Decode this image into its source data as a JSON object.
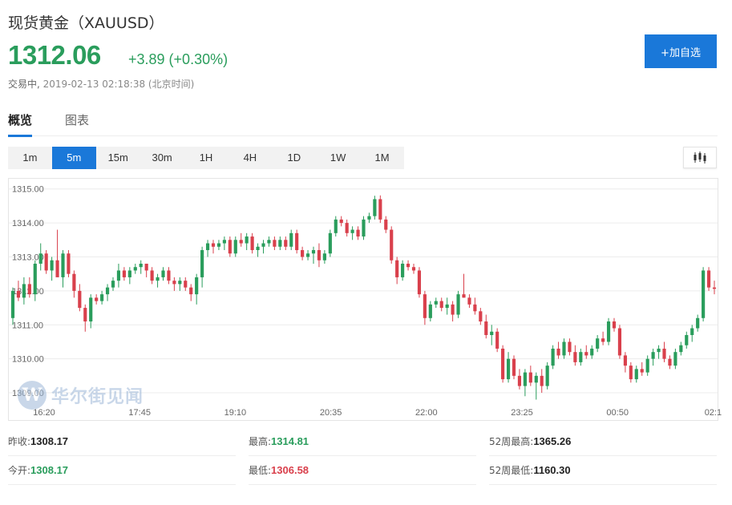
{
  "header": {
    "title": "现货黄金（XAUUSD）",
    "price": "1312.06",
    "change": "+3.89 (+0.30%)",
    "status": "交易中,",
    "timestamp": "2019-02-13 02:18:38 (北京时间)",
    "add_button": "+加自选"
  },
  "tabs": [
    {
      "label": "概览"
    },
    {
      "label": "图表"
    }
  ],
  "intervals": [
    "1m",
    "5m",
    "15m",
    "30m",
    "1H",
    "4H",
    "1D",
    "1W",
    "1M"
  ],
  "selected_interval": "5m",
  "watermark": {
    "text": "华尔街见闻",
    "logo": "W"
  },
  "colors": {
    "up": "#2a9d5c",
    "down": "#d9404c",
    "accent": "#1a78d9"
  },
  "chart_data": {
    "type": "candlestick",
    "y_ticks": [
      "1315.00",
      "1314.00",
      "1313.00",
      "1312.00",
      "1311.00",
      "1310.00",
      "1309.00"
    ],
    "ylim": [
      1308.6,
      1315.3
    ],
    "x_ticks": [
      "16:20",
      "17:45",
      "19:10",
      "20:35",
      "22:00",
      "23:25",
      "00:50",
      "02:1"
    ],
    "grid": true,
    "candles_ohlc": [
      [
        1311.2,
        1312.1,
        1311.0,
        1312.0
      ],
      [
        1312.0,
        1312.3,
        1311.7,
        1311.8
      ],
      [
        1311.8,
        1312.4,
        1311.6,
        1312.2
      ],
      [
        1312.2,
        1312.4,
        1311.8,
        1311.9
      ],
      [
        1311.9,
        1312.9,
        1311.7,
        1312.8
      ],
      [
        1312.8,
        1313.4,
        1312.6,
        1313.1
      ],
      [
        1313.1,
        1313.2,
        1312.5,
        1312.6
      ],
      [
        1312.6,
        1313.0,
        1312.3,
        1312.9
      ],
      [
        1312.9,
        1313.8,
        1312.6,
        1312.4
      ],
      [
        1312.4,
        1313.2,
        1312.1,
        1313.1
      ],
      [
        1313.1,
        1313.2,
        1312.4,
        1312.5
      ],
      [
        1312.5,
        1312.6,
        1311.8,
        1312.0
      ],
      [
        1312.0,
        1312.2,
        1311.4,
        1311.5
      ],
      [
        1311.5,
        1311.6,
        1310.8,
        1311.1
      ],
      [
        1311.1,
        1311.9,
        1310.9,
        1311.8
      ],
      [
        1311.8,
        1311.9,
        1311.6,
        1311.7
      ],
      [
        1311.7,
        1312.0,
        1311.6,
        1311.9
      ],
      [
        1311.9,
        1312.2,
        1311.7,
        1312.1
      ],
      [
        1312.1,
        1312.4,
        1312.0,
        1312.3
      ],
      [
        1312.3,
        1312.8,
        1312.1,
        1312.6
      ],
      [
        1312.6,
        1312.7,
        1312.3,
        1312.4
      ],
      [
        1312.4,
        1312.7,
        1312.2,
        1312.6
      ],
      [
        1312.6,
        1312.8,
        1312.5,
        1312.7
      ],
      [
        1312.7,
        1312.9,
        1312.5,
        1312.8
      ],
      [
        1312.8,
        1312.8,
        1312.4,
        1312.6
      ],
      [
        1312.6,
        1312.7,
        1312.2,
        1312.3
      ],
      [
        1312.3,
        1312.5,
        1312.1,
        1312.4
      ],
      [
        1312.4,
        1312.7,
        1312.3,
        1312.6
      ],
      [
        1312.6,
        1312.7,
        1312.2,
        1312.3
      ],
      [
        1312.3,
        1312.4,
        1312.0,
        1312.2
      ],
      [
        1312.2,
        1312.4,
        1312.0,
        1312.3
      ],
      [
        1312.3,
        1312.4,
        1312.0,
        1312.1
      ],
      [
        1312.1,
        1312.2,
        1311.7,
        1311.9
      ],
      [
        1311.9,
        1312.5,
        1311.6,
        1312.4
      ],
      [
        1312.4,
        1313.3,
        1312.1,
        1313.2
      ],
      [
        1313.2,
        1313.5,
        1313.0,
        1313.4
      ],
      [
        1313.4,
        1313.5,
        1313.1,
        1313.3
      ],
      [
        1313.3,
        1313.5,
        1313.2,
        1313.4
      ],
      [
        1313.4,
        1313.6,
        1313.2,
        1313.5
      ],
      [
        1313.5,
        1313.6,
        1313.0,
        1313.1
      ],
      [
        1313.1,
        1313.6,
        1313.0,
        1313.5
      ],
      [
        1313.5,
        1313.7,
        1313.3,
        1313.4
      ],
      [
        1313.4,
        1313.7,
        1313.2,
        1313.6
      ],
      [
        1313.6,
        1313.7,
        1313.1,
        1313.2
      ],
      [
        1313.2,
        1313.4,
        1313.0,
        1313.3
      ],
      [
        1313.3,
        1313.5,
        1313.1,
        1313.4
      ],
      [
        1313.4,
        1313.6,
        1313.3,
        1313.5
      ],
      [
        1313.5,
        1313.6,
        1313.2,
        1313.3
      ],
      [
        1313.3,
        1313.6,
        1313.2,
        1313.5
      ],
      [
        1313.5,
        1313.6,
        1313.2,
        1313.3
      ],
      [
        1313.3,
        1313.8,
        1313.2,
        1313.7
      ],
      [
        1313.7,
        1313.8,
        1313.1,
        1313.2
      ],
      [
        1313.2,
        1313.3,
        1312.9,
        1313.0
      ],
      [
        1313.0,
        1313.2,
        1312.9,
        1313.1
      ],
      [
        1313.1,
        1313.3,
        1312.8,
        1313.2
      ],
      [
        1313.2,
        1313.4,
        1312.7,
        1312.9
      ],
      [
        1312.9,
        1313.2,
        1312.8,
        1313.1
      ],
      [
        1313.1,
        1313.8,
        1313.0,
        1313.7
      ],
      [
        1313.7,
        1314.2,
        1313.6,
        1314.1
      ],
      [
        1314.1,
        1314.2,
        1313.9,
        1314.0
      ],
      [
        1314.0,
        1314.1,
        1313.6,
        1313.7
      ],
      [
        1313.7,
        1313.9,
        1313.5,
        1313.8
      ],
      [
        1313.8,
        1313.9,
        1313.5,
        1313.6
      ],
      [
        1313.6,
        1314.2,
        1313.5,
        1314.1
      ],
      [
        1314.1,
        1314.3,
        1314.0,
        1314.2
      ],
      [
        1314.2,
        1314.8,
        1314.1,
        1314.7
      ],
      [
        1314.7,
        1314.81,
        1314.0,
        1314.1
      ],
      [
        1314.1,
        1314.2,
        1313.7,
        1313.8
      ],
      [
        1313.8,
        1313.9,
        1312.8,
        1312.9
      ],
      [
        1312.9,
        1313.0,
        1312.2,
        1312.4
      ],
      [
        1312.4,
        1312.9,
        1312.3,
        1312.8
      ],
      [
        1312.8,
        1312.9,
        1312.6,
        1312.7
      ],
      [
        1312.7,
        1312.8,
        1312.5,
        1312.6
      ],
      [
        1312.6,
        1312.7,
        1311.8,
        1311.9
      ],
      [
        1311.9,
        1312.0,
        1311.0,
        1311.2
      ],
      [
        1311.2,
        1311.7,
        1311.1,
        1311.6
      ],
      [
        1311.6,
        1311.8,
        1311.5,
        1311.7
      ],
      [
        1311.7,
        1311.8,
        1311.4,
        1311.5
      ],
      [
        1311.5,
        1311.8,
        1311.3,
        1311.6
      ],
      [
        1311.6,
        1311.7,
        1311.1,
        1311.3
      ],
      [
        1311.3,
        1312.0,
        1311.2,
        1311.9
      ],
      [
        1311.9,
        1312.5,
        1311.8,
        1311.8
      ],
      [
        1311.8,
        1311.9,
        1311.5,
        1311.6
      ],
      [
        1311.6,
        1311.8,
        1311.3,
        1311.4
      ],
      [
        1311.4,
        1311.5,
        1311.0,
        1311.1
      ],
      [
        1311.1,
        1311.3,
        1310.6,
        1310.7
      ],
      [
        1310.7,
        1311.0,
        1310.4,
        1310.8
      ],
      [
        1310.8,
        1310.9,
        1310.2,
        1310.3
      ],
      [
        1310.3,
        1310.4,
        1309.3,
        1309.4
      ],
      [
        1309.4,
        1310.2,
        1309.3,
        1310.0
      ],
      [
        1310.0,
        1310.1,
        1309.4,
        1309.5
      ],
      [
        1309.5,
        1309.7,
        1309.1,
        1309.2
      ],
      [
        1309.2,
        1309.7,
        1308.9,
        1309.6
      ],
      [
        1309.6,
        1309.8,
        1309.2,
        1309.3
      ],
      [
        1309.3,
        1309.6,
        1308.8,
        1309.5
      ],
      [
        1309.5,
        1309.7,
        1309.0,
        1309.2
      ],
      [
        1309.2,
        1309.9,
        1309.1,
        1309.8
      ],
      [
        1309.8,
        1310.4,
        1309.7,
        1310.3
      ],
      [
        1310.3,
        1310.5,
        1310.0,
        1310.1
      ],
      [
        1310.1,
        1310.6,
        1310.0,
        1310.5
      ],
      [
        1310.5,
        1310.6,
        1310.1,
        1310.2
      ],
      [
        1310.2,
        1310.4,
        1309.8,
        1309.9
      ],
      [
        1309.9,
        1310.3,
        1309.8,
        1310.2
      ],
      [
        1310.2,
        1310.4,
        1310.0,
        1310.1
      ],
      [
        1310.1,
        1310.4,
        1310.0,
        1310.3
      ],
      [
        1310.3,
        1310.7,
        1310.2,
        1310.6
      ],
      [
        1310.6,
        1310.8,
        1310.4,
        1310.5
      ],
      [
        1310.5,
        1311.2,
        1310.4,
        1311.1
      ],
      [
        1311.1,
        1311.2,
        1310.8,
        1310.9
      ],
      [
        1310.9,
        1311.0,
        1310.0,
        1310.1
      ],
      [
        1310.1,
        1310.2,
        1309.6,
        1309.8
      ],
      [
        1309.8,
        1309.9,
        1309.3,
        1309.4
      ],
      [
        1309.4,
        1309.8,
        1309.3,
        1309.7
      ],
      [
        1309.7,
        1309.9,
        1309.5,
        1309.6
      ],
      [
        1309.6,
        1310.1,
        1309.5,
        1310.0
      ],
      [
        1310.0,
        1310.3,
        1309.8,
        1310.2
      ],
      [
        1310.2,
        1310.4,
        1310.0,
        1310.3
      ],
      [
        1310.3,
        1310.5,
        1309.9,
        1310.0
      ],
      [
        1310.0,
        1310.1,
        1309.7,
        1309.8
      ],
      [
        1309.8,
        1310.3,
        1309.7,
        1310.2
      ],
      [
        1310.2,
        1310.5,
        1310.1,
        1310.4
      ],
      [
        1310.4,
        1310.8,
        1310.3,
        1310.7
      ],
      [
        1310.7,
        1311.0,
        1310.5,
        1310.9
      ],
      [
        1310.9,
        1311.3,
        1310.8,
        1311.2
      ],
      [
        1311.2,
        1312.7,
        1311.1,
        1312.6
      ],
      [
        1312.6,
        1312.7,
        1312.0,
        1312.1
      ],
      [
        1312.1,
        1312.3,
        1311.9,
        1312.06
      ]
    ]
  },
  "stats": [
    {
      "label": "昨收:",
      "value": "1308.17",
      "color": ""
    },
    {
      "label": "最高:",
      "value": "1314.81",
      "color": "green"
    },
    {
      "label": "52周最高:",
      "value": "1365.26",
      "color": ""
    },
    {
      "label": "今开:",
      "value": "1308.17",
      "color": "green"
    },
    {
      "label": "最低:",
      "value": "1306.58",
      "color": "red"
    },
    {
      "label": "52周最低:",
      "value": "1160.30",
      "color": ""
    }
  ]
}
